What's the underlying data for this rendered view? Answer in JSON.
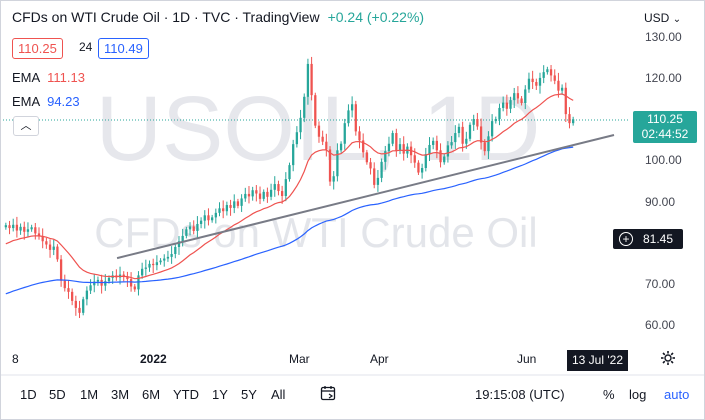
{
  "header": {
    "title": "CFDs on WTI Crude Oil · 1D · TVC · TradingView",
    "change": "+0.24 (+0.22%)"
  },
  "price_boxes": {
    "sell": "110.25",
    "spread": "24",
    "buy": "110.49"
  },
  "indicators": [
    {
      "label": "EMA",
      "value": "111.13",
      "color": "#ef5350"
    },
    {
      "label": "EMA",
      "value": "94.23",
      "color": "#2962ff"
    }
  ],
  "currency": "USD",
  "watermark": {
    "symbol": "USOIL, 1D",
    "name": "CFDs on WTI Crude Oil"
  },
  "price_label": {
    "price": "110.25",
    "countdown": "02:44:52"
  },
  "level_label": "81.45",
  "date_label": "13 Jul '22",
  "toolbar": {
    "ranges": [
      "1D",
      "5D",
      "1M",
      "3M",
      "6M",
      "YTD",
      "1Y",
      "5Y",
      "All"
    ],
    "time": "19:15:08 (UTC)",
    "percent": "%",
    "log": "log",
    "auto": "auto"
  },
  "colors": {
    "up": "#26a69a",
    "down": "#ef5350",
    "ema_fast": "#ef5350",
    "ema_slow": "#2962ff",
    "trendline": "#787b86",
    "accent": "#2962ff"
  },
  "chart_data": {
    "type": "candlestick",
    "symbol": "USOIL",
    "interval": "1D",
    "y_ticks": [
      60,
      70,
      80,
      90,
      100,
      110,
      120,
      130
    ],
    "y_range": [
      57,
      133
    ],
    "x_ticks": [
      "8",
      "2022",
      "Mar",
      "Apr",
      "Jun"
    ],
    "grid": false,
    "last_price": 110.25,
    "series_close": [
      84.5,
      83.8,
      84.6,
      83.2,
      84.1,
      82.9,
      83.5,
      84.0,
      82.5,
      81.8,
      80.6,
      79.8,
      78.5,
      79.3,
      76.2,
      71.0,
      69.2,
      68.3,
      66.1,
      64.4,
      63.2,
      66.5,
      68.6,
      69.9,
      70.8,
      71.2,
      69.8,
      70.9,
      71.7,
      72.3,
      71.8,
      72.5,
      71.9,
      71.4,
      69.6,
      68.9,
      72.3,
      73.9,
      74.2,
      75.1,
      74.8,
      75.5,
      75.9,
      76.4,
      76.8,
      77.5,
      79.2,
      80.6,
      81.9,
      83.5,
      84.2,
      83.1,
      84.8,
      85.6,
      86.9,
      85.7,
      86.4,
      87.5,
      88.6,
      87.9,
      89.4,
      88.7,
      90.3,
      89.2,
      91.0,
      92.1,
      91.5,
      93.0,
      92.2,
      90.9,
      92.6,
      91.4,
      93.1,
      94.5,
      92.8,
      91.6,
      95.7,
      99.1,
      104.2,
      107.1,
      110.6,
      115.7,
      123.7,
      116.1,
      108.7,
      106.0,
      104.8,
      102.9,
      95.1,
      96.4,
      102.7,
      104.3,
      109.3,
      112.4,
      113.9,
      107.3,
      105.1,
      102.2,
      99.8,
      98.3,
      94.3,
      96.0,
      99.9,
      102.5,
      104.3,
      106.9,
      102.6,
      104.2,
      101.9,
      103.6,
      101.5,
      99.7,
      97.3,
      98.4,
      101.8,
      104.0,
      105.0,
      102.7,
      99.8,
      101.2,
      103.9,
      104.7,
      106.9,
      108.4,
      104.3,
      105.5,
      108.9,
      110.3,
      108.5,
      104.6,
      102.5,
      106.1,
      109.8,
      110.3,
      113.0,
      114.3,
      112.8,
      114.9,
      116.6,
      115.3,
      114.2,
      117.5,
      120.1,
      119.3,
      118.4,
      120.3,
      121.7,
      122.4,
      120.9,
      119.6,
      117.2,
      117.9,
      111.5,
      109.3,
      110.25
    ],
    "ema_fast": {
      "label": "EMA",
      "value": 111.13
    },
    "ema_slow": {
      "label": "EMA",
      "value": 94.23
    },
    "trendline": [
      [
        0.198,
        76.5
      ],
      [
        0.875,
        105.5
      ]
    ]
  }
}
